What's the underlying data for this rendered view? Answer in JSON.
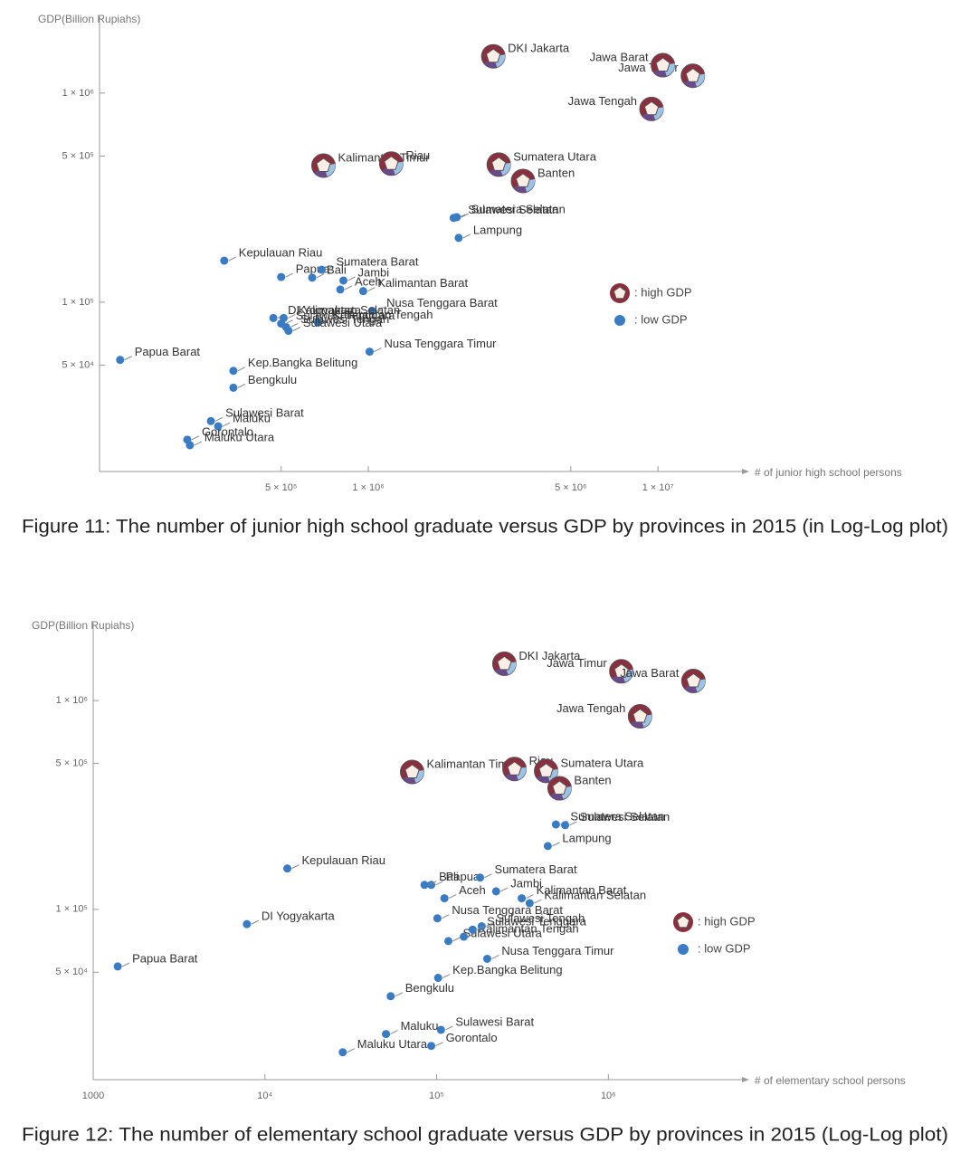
{
  "chart_data": [
    {
      "type": "scatter",
      "log_x": true,
      "log_y": true,
      "caption": "Figure 11: The number of junior high school graduate versus GDP by provinces in 2015 (in Log-Log plot)",
      "y_label": "GDP(Billion Rupiahs)",
      "x_label": "# of junior high school persons",
      "xlim": [
        118000,
        19500000
      ],
      "ylim": [
        15500,
        2330000
      ],
      "xticks": [
        {
          "value": 500000,
          "label": "5 × 10⁵"
        },
        {
          "value": 1000000,
          "label": "1 × 10⁶"
        },
        {
          "value": 5000000,
          "label": "5 × 10⁶"
        },
        {
          "value": 10000000,
          "label": "1 × 10⁷"
        }
      ],
      "yticks": [
        {
          "value": 50000,
          "label": "5 × 10⁴"
        },
        {
          "value": 100000,
          "label": "1 × 10⁵"
        },
        {
          "value": 500000,
          "label": "5 × 10⁵"
        },
        {
          "value": 1000000,
          "label": "1 × 10⁶"
        }
      ],
      "series": [
        {
          "name": ": high GDP",
          "color": "#8b2f3f",
          "labels": [
            "DKI Jakarta",
            "Jawa Timur",
            "Jawa Barat",
            "Jawa Tengah",
            "Kalimantan Timur",
            "Riau",
            "Sumatera Utara",
            "Banten"
          ],
          "x": [
            2700000,
            13200000,
            10400000,
            9500000,
            700000,
            1200000,
            2820000,
            3420000
          ],
          "values": [
            1500000,
            1210000,
            1360000,
            840000,
            450000,
            460000,
            455000,
            380000
          ]
        },
        {
          "name": ": low GDP",
          "color": "#3a7cc4",
          "labels": [
            "Sulawesi Selatan",
            "Sumatera Selatan",
            "Lampung",
            "Kepulauan Riau",
            "Papua",
            "Sumatera Barat",
            "Bali",
            "Aceh",
            "Jambi",
            "Kalimantan Barat",
            "Nusa Tenggara Barat",
            "Kalimantan Tengah",
            "DI Yogyakarta",
            "Kalimantan Selatan",
            "Sulawesi Utara",
            "Sulawesi Tengah",
            "Sulawesi Tenggara",
            "Nusa Tenggara Timur",
            "Papua Barat",
            "Kep.Bangka Belitung",
            "Bengkulu",
            "Sulawesi Barat",
            "Maluku",
            "Gorontalo",
            "Maluku Utara"
          ],
          "x": [
            1970000,
            2020000,
            2050000,
            318000,
            500000,
            690000,
            640000,
            800000,
            820000,
            960000,
            1030000,
            670000,
            470000,
            510000,
            530000,
            520000,
            500000,
            1010000,
            139000,
            342000,
            342000,
            286000,
            303000,
            237000,
            242000
          ],
          "values": [
            253000,
            255000,
            203000,
            158000,
            132000,
            143000,
            131000,
            115000,
            127000,
            113000,
            91000,
            80000,
            84000,
            84000,
            73000,
            76000,
            79000,
            58000,
            53000,
            47000,
            39000,
            27000,
            25500,
            22000,
            20700
          ]
        }
      ]
    },
    {
      "type": "scatter",
      "log_x": true,
      "log_y": true,
      "caption": "Figure 12: The number of elementary school graduate versus GDP by provinces in 2015 (Log-Log plot)",
      "y_label": "GDP(Billion Rupiahs)",
      "x_label": "# of elementary school persons",
      "xlim": [
        1000,
        6000000
      ],
      "ylim": [
        15300,
        2360000
      ],
      "xticks": [
        1000,
        {
          "value": 10000,
          "label": "10⁴"
        },
        {
          "value": 100000,
          "label": "10⁵"
        },
        {
          "value": 1000000,
          "label": "10⁶"
        }
      ],
      "yticks": [
        {
          "value": 50000,
          "label": "5 × 10⁴"
        },
        {
          "value": 100000,
          "label": "1 × 10⁵"
        },
        {
          "value": 500000,
          "label": "5 × 10⁵"
        },
        {
          "value": 1000000,
          "label": "1 × 10⁶"
        }
      ],
      "series": [
        {
          "name": ": high GDP",
          "color": "#8b2f3f",
          "labels": [
            "DKI Jakarta",
            "Jawa Timur",
            "Jawa Barat",
            "Jawa Tengah",
            "Kalimantan Timur",
            "Riau",
            "Sumatera Utara",
            "Banten"
          ],
          "x": [
            248000,
            1190000,
            3130000,
            1530000,
            72000,
            284000,
            434000,
            520000
          ],
          "values": [
            1500000,
            1380000,
            1240000,
            840000,
            455000,
            470000,
            460000,
            380000
          ]
        },
        {
          "name": ": low GDP",
          "color": "#3a7cc4",
          "labels": [
            "Sumatera Selatan",
            "Sulawesi Selatan",
            "Lampung",
            "Kepulauan Riau",
            "Papua",
            "Bali",
            "Sumatera Barat",
            "Aceh",
            "Jambi",
            "Kalimantan Barat",
            "Kalimantan Selatan",
            "Nusa Tenggara Barat",
            "Sulawesi Utara",
            "Kalimantan Tengah",
            "Sulawesi Tengah",
            "Sulawesi Tenggara",
            "Nusa Tenggara Timur",
            "Kep.Bangka Belitung",
            "Bengkulu",
            "Maluku",
            "Sulawesi Barat",
            "Gorontalo",
            "Maluku Utara",
            "DI Yogyakarta",
            "Papua Barat"
          ],
          "x": [
            495000,
            560000,
            444000,
            13500,
            93000,
            85000,
            179000,
            111000,
            222000,
            313000,
            348000,
            101000,
            117000,
            144000,
            183000,
            162000,
            197000,
            102000,
            54000,
            50700,
            106000,
            93000,
            28400,
            7850,
            1390
          ],
          "values": [
            255000,
            253000,
            201000,
            157000,
            131000,
            131000,
            142000,
            113000,
            122000,
            113000,
            107000,
            90600,
            70500,
            74000,
            83000,
            80000,
            58000,
            47000,
            38400,
            25300,
            26500,
            22200,
            20700,
            85000,
            53300
          ]
        }
      ]
    }
  ]
}
